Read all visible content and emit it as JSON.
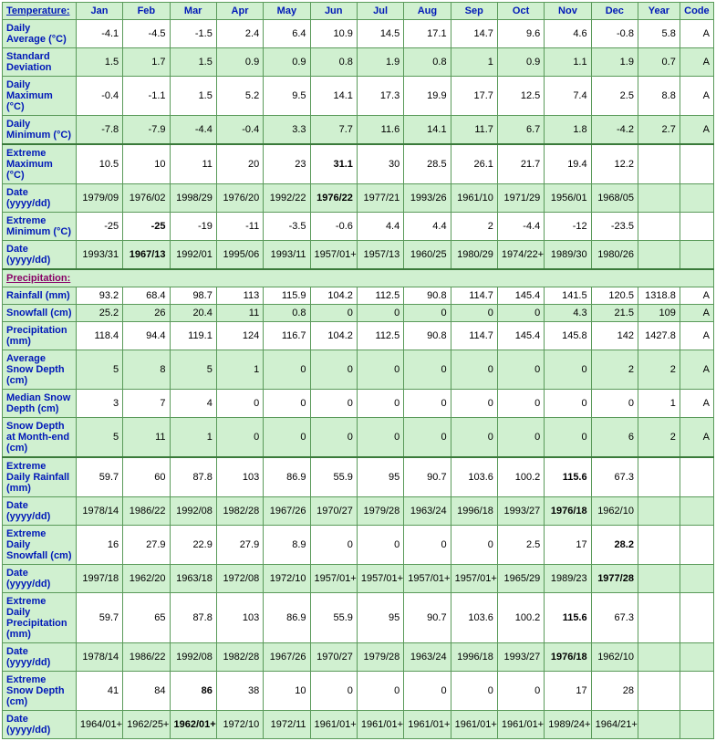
{
  "colors": {
    "header_bg": "#d0f0d0",
    "header_text": "#0018b8",
    "border": "#5a9a5a",
    "heavy_border": "#3a7a3a",
    "stripe_bg": "#d0f0d0",
    "plain_bg": "#ffffff",
    "value_text": "#000000",
    "section_text": "#880066"
  },
  "columns": [
    "Jan",
    "Feb",
    "Mar",
    "Apr",
    "May",
    "Jun",
    "Jul",
    "Aug",
    "Sep",
    "Oct",
    "Nov",
    "Dec",
    "Year",
    "Code"
  ],
  "sections": [
    {
      "title": "Temperature:",
      "rows": [
        {
          "label": "Daily Average (°C)",
          "stripe": false,
          "vals": [
            "-4.1",
            "-4.5",
            "-1.5",
            "2.4",
            "6.4",
            "10.9",
            "14.5",
            "17.1",
            "14.7",
            "9.6",
            "4.6",
            "-0.8",
            "5.8",
            "A"
          ]
        },
        {
          "label": "Standard Deviation",
          "stripe": true,
          "vals": [
            "1.5",
            "1.7",
            "1.5",
            "0.9",
            "0.9",
            "0.8",
            "1.9",
            "0.8",
            "1",
            "0.9",
            "1.1",
            "1.9",
            "0.7",
            "A"
          ]
        },
        {
          "label": "Daily Maximum (°C)",
          "stripe": false,
          "vals": [
            "-0.4",
            "-1.1",
            "1.5",
            "5.2",
            "9.5",
            "14.1",
            "17.3",
            "19.9",
            "17.7",
            "12.5",
            "7.4",
            "2.5",
            "8.8",
            "A"
          ]
        },
        {
          "label": "Daily Minimum (°C)",
          "stripe": true,
          "heavyBottom": true,
          "vals": [
            "-7.8",
            "-7.9",
            "-4.4",
            "-0.4",
            "3.3",
            "7.7",
            "11.6",
            "14.1",
            "11.7",
            "6.7",
            "1.8",
            "-4.2",
            "2.7",
            "A"
          ]
        },
        {
          "label": "Extreme Maximum (°C)",
          "stripe": false,
          "heavyTop": true,
          "vals": [
            "10.5",
            "10",
            "11",
            "20",
            "23",
            "31.1",
            "30",
            "28.5",
            "26.1",
            "21.7",
            "19.4",
            "12.2",
            "",
            ""
          ],
          "bold": [
            5
          ]
        },
        {
          "label": "Date (yyyy/dd)",
          "stripe": true,
          "vals": [
            "1979/09",
            "1976/02",
            "1998/29",
            "1976/20",
            "1992/22",
            "1976/22",
            "1977/21",
            "1993/26",
            "1961/10",
            "1971/29",
            "1956/01",
            "1968/05",
            "",
            ""
          ],
          "bold": [
            5
          ]
        },
        {
          "label": "Extreme Minimum (°C)",
          "stripe": false,
          "vals": [
            "-25",
            "-25",
            "-19",
            "-11",
            "-3.5",
            "-0.6",
            "4.4",
            "4.4",
            "2",
            "-4.4",
            "-12",
            "-23.5",
            "",
            ""
          ],
          "bold": [
            1
          ]
        },
        {
          "label": "Date (yyyy/dd)",
          "stripe": true,
          "heavyBottom": true,
          "vals": [
            "1993/31",
            "1967/13",
            "1992/01",
            "1995/06",
            "1993/11",
            "1957/01+",
            "1957/13",
            "1960/25",
            "1980/29",
            "1974/22+",
            "1989/30",
            "1980/26",
            "",
            ""
          ],
          "bold": [
            1
          ]
        }
      ]
    },
    {
      "title": "Precipitation:",
      "rows": [
        {
          "label": "Rainfall (mm)",
          "stripe": false,
          "vals": [
            "93.2",
            "68.4",
            "98.7",
            "113",
            "115.9",
            "104.2",
            "112.5",
            "90.8",
            "114.7",
            "145.4",
            "141.5",
            "120.5",
            "1318.8",
            "A"
          ]
        },
        {
          "label": "Snowfall (cm)",
          "stripe": true,
          "vals": [
            "25.2",
            "26",
            "20.4",
            "11",
            "0.8",
            "0",
            "0",
            "0",
            "0",
            "0",
            "4.3",
            "21.5",
            "109",
            "A"
          ]
        },
        {
          "label": "Precipitation (mm)",
          "stripe": false,
          "vals": [
            "118.4",
            "94.4",
            "119.1",
            "124",
            "116.7",
            "104.2",
            "112.5",
            "90.8",
            "114.7",
            "145.4",
            "145.8",
            "142",
            "1427.8",
            "A"
          ]
        },
        {
          "label": "Average Snow Depth (cm)",
          "stripe": true,
          "vals": [
            "5",
            "8",
            "5",
            "1",
            "0",
            "0",
            "0",
            "0",
            "0",
            "0",
            "0",
            "2",
            "2",
            "A"
          ]
        },
        {
          "label": "Median Snow Depth (cm)",
          "stripe": false,
          "vals": [
            "3",
            "7",
            "4",
            "0",
            "0",
            "0",
            "0",
            "0",
            "0",
            "0",
            "0",
            "0",
            "1",
            "A"
          ]
        },
        {
          "label": "Snow Depth at Month-end (cm)",
          "stripe": true,
          "heavyBottom": true,
          "vals": [
            "5",
            "11",
            "1",
            "0",
            "0",
            "0",
            "0",
            "0",
            "0",
            "0",
            "0",
            "6",
            "2",
            "A"
          ]
        },
        {
          "label": "Extreme Daily Rainfall (mm)",
          "stripe": false,
          "heavyTop": true,
          "vals": [
            "59.7",
            "60",
            "87.8",
            "103",
            "86.9",
            "55.9",
            "95",
            "90.7",
            "103.6",
            "100.2",
            "115.6",
            "67.3",
            "",
            ""
          ],
          "bold": [
            10
          ]
        },
        {
          "label": "Date (yyyy/dd)",
          "stripe": true,
          "vals": [
            "1978/14",
            "1986/22",
            "1992/08",
            "1982/28",
            "1967/26",
            "1970/27",
            "1979/28",
            "1963/24",
            "1996/18",
            "1993/27",
            "1976/18",
            "1962/10",
            "",
            ""
          ],
          "bold": [
            10
          ]
        },
        {
          "label": "Extreme Daily Snowfall (cm)",
          "stripe": false,
          "vals": [
            "16",
            "27.9",
            "22.9",
            "27.9",
            "8.9",
            "0",
            "0",
            "0",
            "0",
            "2.5",
            "17",
            "28.2",
            "",
            ""
          ],
          "bold": [
            11
          ]
        },
        {
          "label": "Date (yyyy/dd)",
          "stripe": true,
          "vals": [
            "1997/18",
            "1962/20",
            "1963/18",
            "1972/08",
            "1972/10",
            "1957/01+",
            "1957/01+",
            "1957/01+",
            "1957/01+",
            "1965/29",
            "1989/23",
            "1977/28",
            "",
            ""
          ],
          "bold": [
            11
          ]
        },
        {
          "label": "Extreme Daily Precipitation (mm)",
          "stripe": false,
          "vals": [
            "59.7",
            "65",
            "87.8",
            "103",
            "86.9",
            "55.9",
            "95",
            "90.7",
            "103.6",
            "100.2",
            "115.6",
            "67.3",
            "",
            ""
          ],
          "bold": [
            10
          ]
        },
        {
          "label": "Date (yyyy/dd)",
          "stripe": true,
          "vals": [
            "1978/14",
            "1986/22",
            "1992/08",
            "1982/28",
            "1967/26",
            "1970/27",
            "1979/28",
            "1963/24",
            "1996/18",
            "1993/27",
            "1976/18",
            "1962/10",
            "",
            ""
          ],
          "bold": [
            10
          ]
        },
        {
          "label": "Extreme Snow Depth (cm)",
          "stripe": false,
          "vals": [
            "41",
            "84",
            "86",
            "38",
            "10",
            "0",
            "0",
            "0",
            "0",
            "0",
            "17",
            "28",
            "",
            ""
          ],
          "bold": [
            2
          ]
        },
        {
          "label": "Date (yyyy/dd)",
          "stripe": true,
          "vals": [
            "1964/01+",
            "1962/25+",
            "1962/01+",
            "1972/10",
            "1972/11",
            "1961/01+",
            "1961/01+",
            "1961/01+",
            "1961/01+",
            "1961/01+",
            "1989/24+",
            "1964/21+",
            "",
            ""
          ],
          "bold": [
            2
          ]
        }
      ]
    }
  ]
}
